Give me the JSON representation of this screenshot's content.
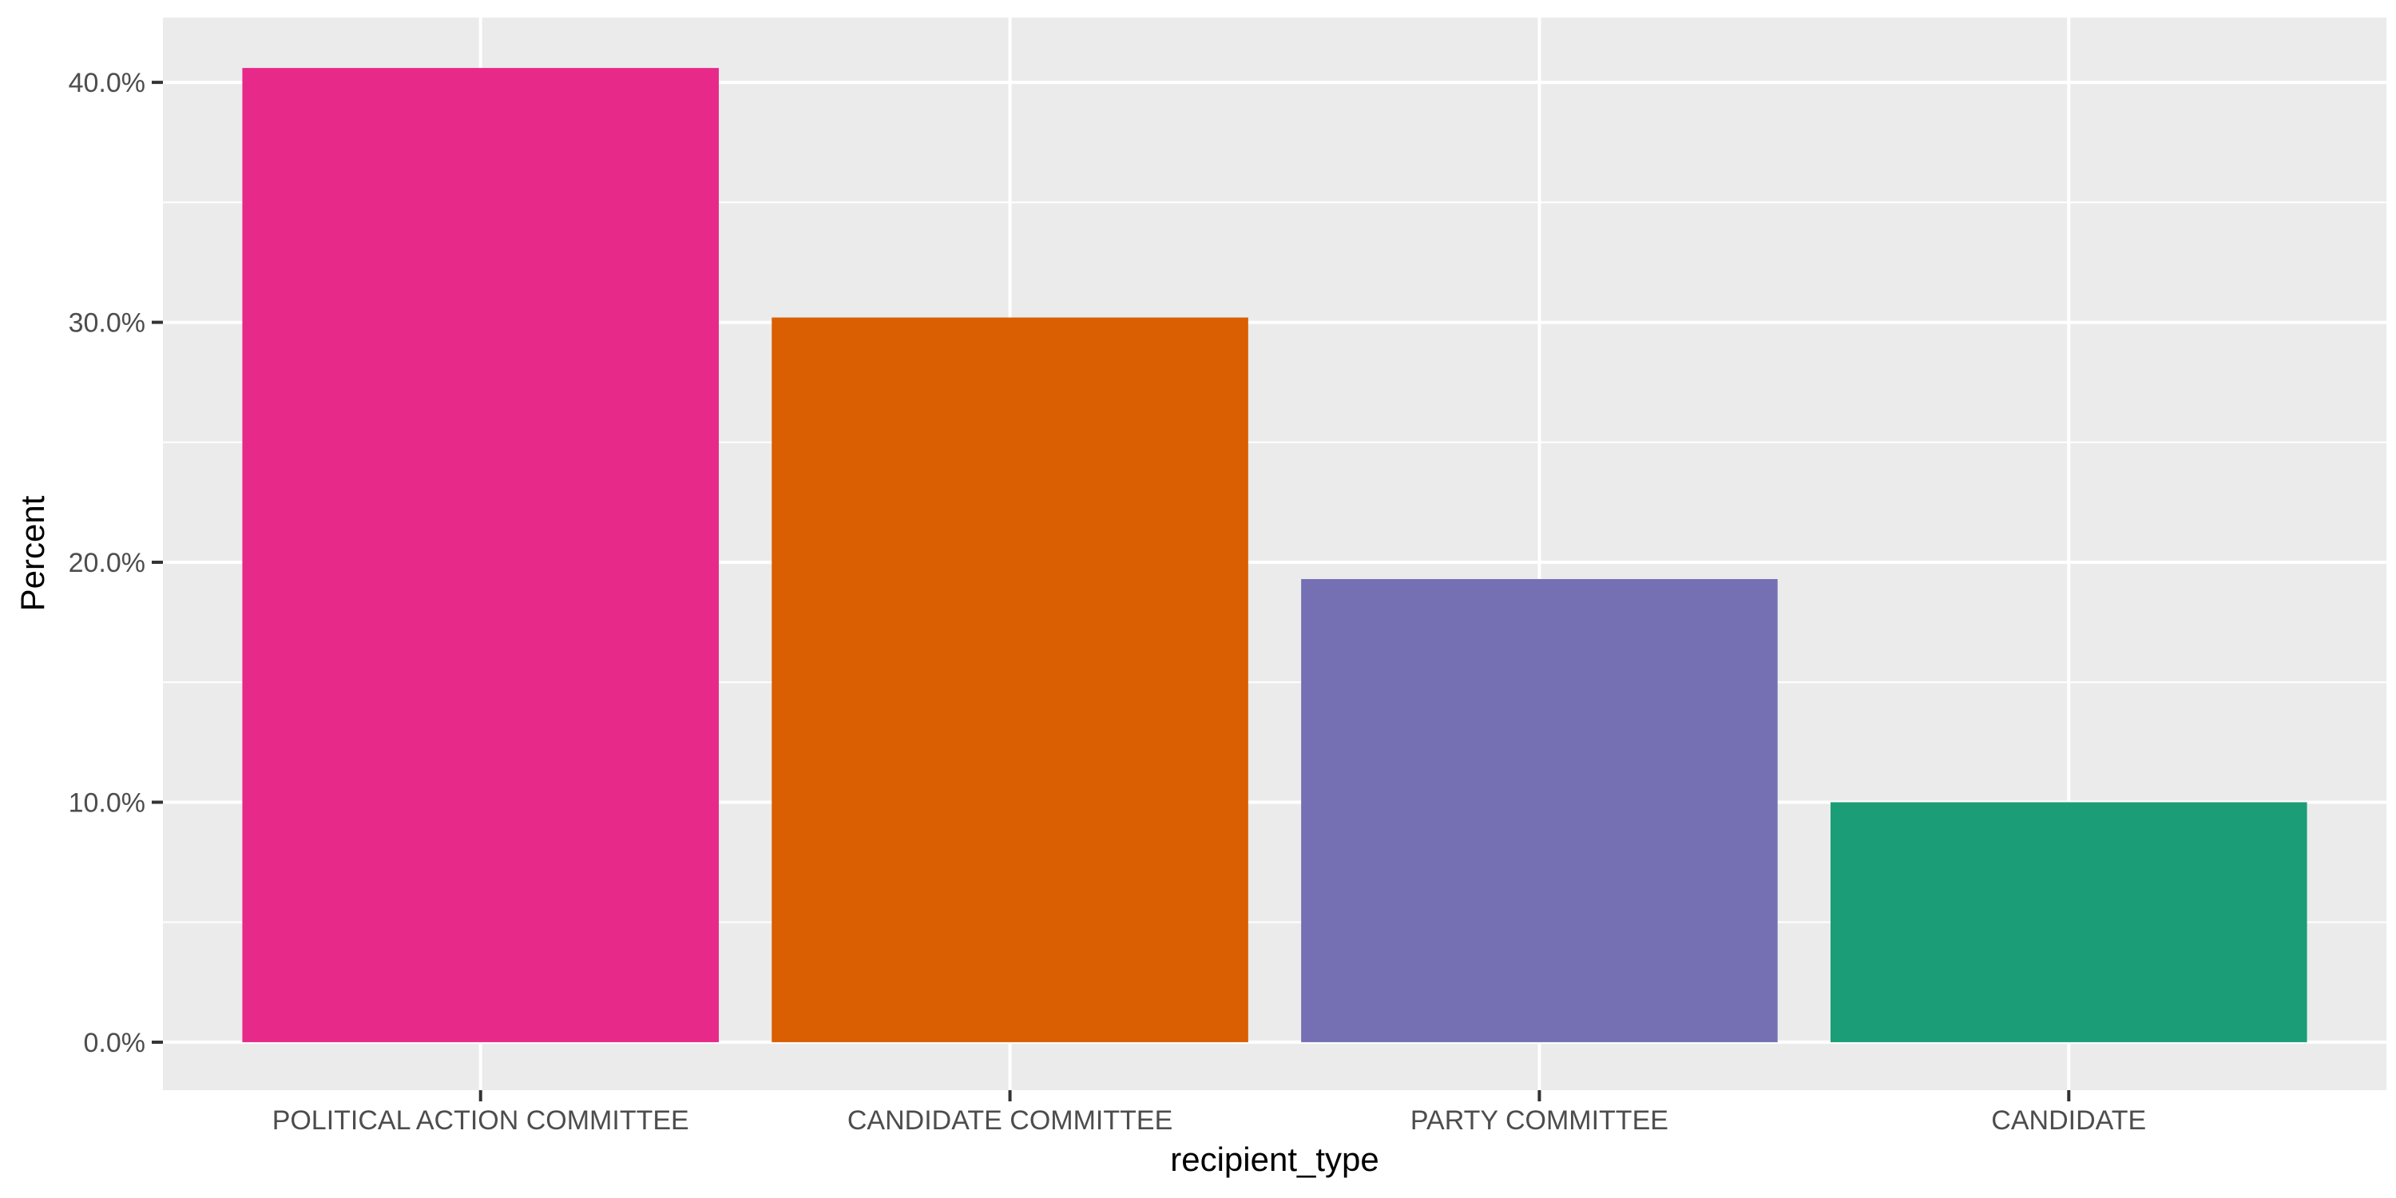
{
  "chart_data": {
    "type": "bar",
    "categories": [
      "POLITICAL ACTION COMMITTEE",
      "CANDIDATE COMMITTEE",
      "PARTY COMMITTEE",
      "CANDIDATE"
    ],
    "values": [
      40.6,
      30.2,
      19.3,
      10.0
    ],
    "value_unit": "percent",
    "colors": [
      "#E7298A",
      "#D95F02",
      "#7570B3",
      "#1B9E77"
    ],
    "title": "",
    "xlabel": "recipient_type",
    "ylabel": "Percent",
    "ylim": [
      -2.0,
      42.7
    ],
    "yticks": [
      0,
      10,
      20,
      30,
      40
    ],
    "ytick_labels": [
      "0.0%",
      "10.0%",
      "20.0%",
      "30.0%",
      "40.0%"
    ],
    "grid": true,
    "panel_background": "#EBEBEB",
    "gridline_color": "#FFFFFF",
    "legend": "none"
  }
}
